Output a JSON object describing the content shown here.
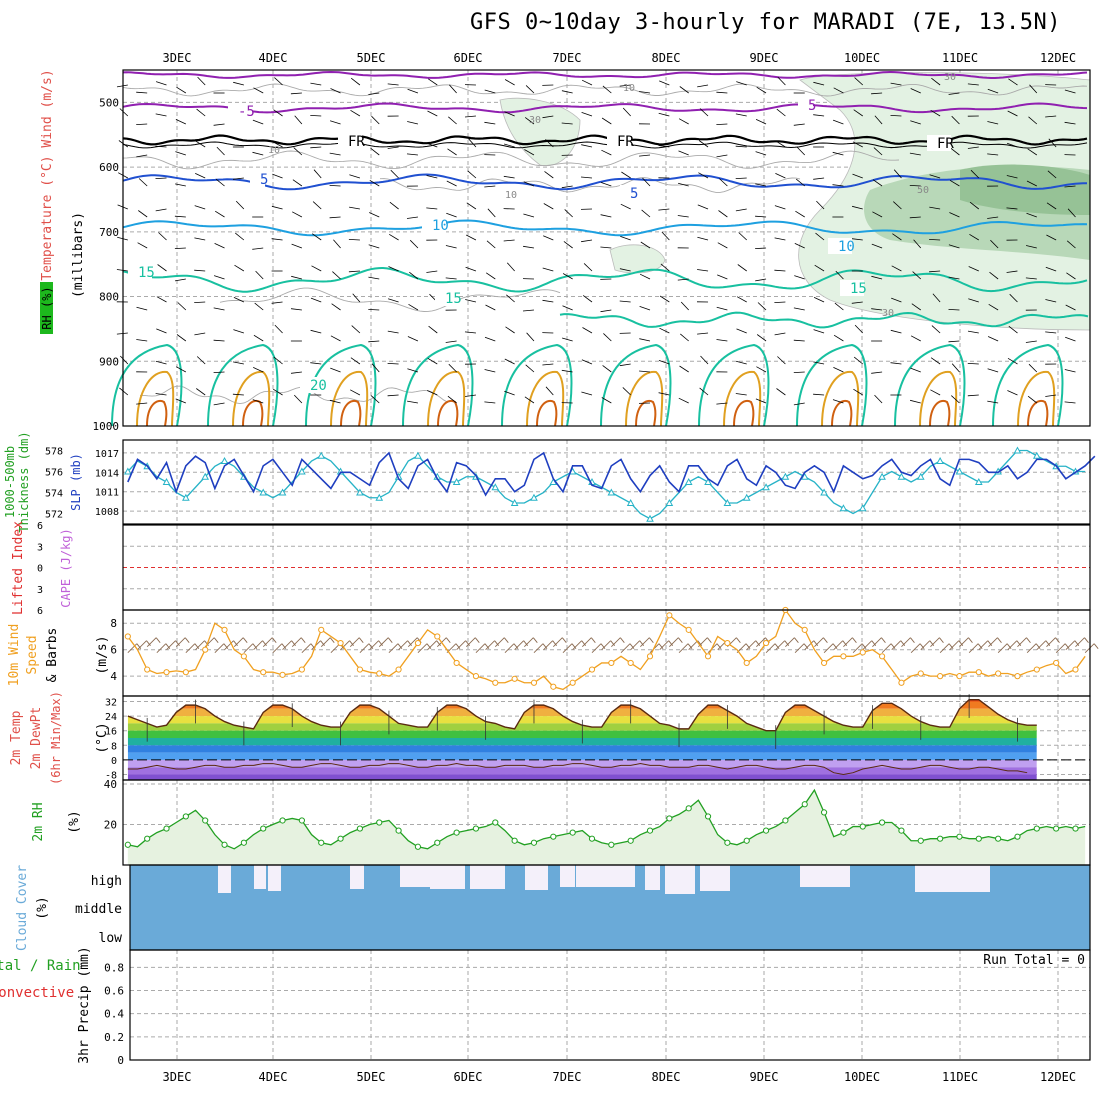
{
  "title": "GFS 0~10day 3-hourly for MARADI (7E, 13.5N)",
  "dates": [
    "3DEC",
    "4DEC",
    "5DEC",
    "6DEC",
    "7DEC",
    "8DEC",
    "9DEC",
    "10DEC",
    "11DEC",
    "12DEC"
  ],
  "colors": {
    "rh_fill": "#1db81d",
    "temp_label": "#e0504a",
    "wind_label": "#000000",
    "slp": "#1f3fc0",
    "thickness": "#27b3c7",
    "li": "#e03030",
    "cape": "#c060d8",
    "wind10": "#f0a020",
    "rh2m": "#22a022",
    "cloud": "#6aaad8",
    "precip_total": "#22a022",
    "precip_conv": "#e03030"
  },
  "labels": {
    "panel1_left": "RH (%)",
    "panel1_mid": "Temperature (°C) Wind (m/s)",
    "panel1_units": "(millibars)",
    "panel2_a": "1000-500mb",
    "panel2_b": "Thickness (dm)",
    "panel2_slp": "SLP (mb)",
    "panel3_li": "Lifted Index",
    "panel3_cape": "CAPE (J/kg)",
    "panel4_a": "10m Wind",
    "panel4_b": "Speed",
    "panel4_c": "& Barbs",
    "panel4_units": "(m/s)",
    "panel5_a": "2m Temp",
    "panel5_b": "2m DewPt",
    "panel5_c": "(6hr Min/Max)",
    "panel5_units": "(°C)",
    "panel6_a": "2m RH",
    "panel6_units": "(%)",
    "panel7_a": "Cloud Cover",
    "panel7_units": "(%)",
    "cloud_levels": [
      "high",
      "middle",
      "low"
    ],
    "panel8_a": "Total / Rain",
    "panel8_b": "Convective",
    "panel8_c": "3hr Precip (mm)",
    "run_total": "Run Total = 0"
  },
  "chart_data": [
    {
      "type": "contour",
      "name": "upper-air",
      "y_ticks": [
        500,
        600,
        700,
        800,
        900,
        1000
      ],
      "ylim": [
        1000,
        450
      ],
      "isotherm_labels": [
        "-5",
        "5",
        "FR",
        "FR",
        "FR",
        "5",
        "5",
        "10",
        "10",
        "15",
        "15",
        "15",
        "20"
      ],
      "rh_labels": [
        "10",
        "10",
        "10",
        "30",
        "30",
        "30",
        "50"
      ]
    },
    {
      "type": "line",
      "name": "thickness-slp",
      "thickness_ticks": [
        572,
        574,
        576,
        578
      ],
      "slp_ticks": [
        1008,
        1011,
        1014,
        1017
      ],
      "slp": [
        1012.5,
        1016,
        1015,
        1013,
        1015.5,
        1011,
        1015,
        1016.5,
        1015.5,
        1011.5,
        1015,
        1016,
        1013.5,
        1011,
        1015,
        1016,
        1014,
        1012,
        1016,
        1014.5,
        1013,
        1011.5,
        1014,
        1014,
        1013,
        1012,
        1015.5,
        1017,
        1013,
        1011.5,
        1015,
        1016,
        1013,
        1011,
        1015.5,
        1015,
        1013.5,
        1010.5,
        1013,
        1013,
        1011,
        1012,
        1016,
        1017,
        1013,
        1011,
        1015,
        1015,
        1012,
        1011.5,
        1015,
        1016,
        1013,
        1011,
        1013.5,
        1015,
        1012.5,
        1011,
        1015,
        1015,
        1013,
        1012,
        1015,
        1016,
        1013,
        1012,
        1015,
        1014,
        1012,
        1011.5,
        1014,
        1015,
        1014,
        1011,
        1015,
        1014,
        1013,
        1013.5,
        1015,
        1016,
        1014,
        1013.5,
        1015,
        1016,
        1013,
        1012,
        1016,
        1016,
        1015.5,
        1014,
        1014,
        1015,
        1013,
        1014,
        1016,
        1016,
        1015,
        1013,
        1014,
        1015,
        1016.5
      ],
      "thickness": [
        576,
        577,
        576.5,
        575.5,
        575,
        574,
        573.5,
        574.5,
        575.5,
        576.5,
        577,
        576.5,
        575.5,
        574.5,
        574,
        573.5,
        574,
        575,
        576,
        577,
        577.5,
        577,
        576,
        575,
        574,
        573.5,
        573.5,
        574,
        575.5,
        577,
        577.5,
        576.5,
        575.5,
        575,
        575,
        575.5,
        575.5,
        575,
        574.5,
        573.5,
        573,
        573,
        573.5,
        574,
        575,
        575.5,
        576,
        575.5,
        575,
        574.5,
        574,
        573.5,
        573,
        572,
        571.5,
        572,
        573,
        574,
        575,
        575.5,
        575,
        574,
        573,
        573,
        573.5,
        574,
        574.5,
        575,
        575.5,
        576,
        575.5,
        575,
        574,
        573,
        572.5,
        572,
        572.5,
        574,
        575.5,
        576,
        575.5,
        575,
        575.5,
        576.5,
        577,
        576.5,
        576,
        575.5,
        575,
        575,
        576,
        577,
        578,
        578,
        577.5,
        577,
        576.5,
        576.5,
        576,
        576
      ],
      "ylim_thickness": [
        571,
        579
      ]
    },
    {
      "type": "line",
      "name": "li-cape",
      "li_ticks": [
        -6,
        -3,
        0,
        3,
        6
      ],
      "li_values": [
        0,
        0
      ],
      "ylim": [
        -6,
        6
      ]
    },
    {
      "type": "line",
      "name": "wind10m",
      "y_ticks": [
        4,
        6,
        8
      ],
      "ylim": [
        2.5,
        9
      ],
      "values": [
        7,
        6,
        4.5,
        4.2,
        4.3,
        4.4,
        4.3,
        4.5,
        6,
        8,
        7.5,
        6,
        5.5,
        4.5,
        4.3,
        4.3,
        4.1,
        4.2,
        4.5,
        5.5,
        7.5,
        7,
        6.5,
        5.5,
        4.5,
        4.3,
        4.2,
        4,
        4.5,
        5.5,
        6.5,
        7.5,
        7,
        6,
        5,
        4.5,
        4,
        3.8,
        3.5,
        3.5,
        3.8,
        3.5,
        3.5,
        4,
        3.2,
        3,
        3.5,
        4,
        4.5,
        5,
        5,
        5.5,
        5,
        4.5,
        5.5,
        7,
        8.6,
        8,
        7.5,
        6.5,
        5.5,
        7,
        6.5,
        6,
        5,
        5.5,
        6.5,
        7,
        9,
        8,
        7.5,
        6,
        5,
        5.5,
        5.5,
        5.5,
        5.8,
        6,
        5.5,
        4.5,
        3.5,
        4,
        4.2,
        4,
        4,
        4.2,
        4,
        4.3,
        4.3,
        4,
        4.2,
        4.2,
        4,
        4.3,
        4.5,
        4.8,
        5,
        4.2,
        4.5,
        5.5
      ]
    },
    {
      "type": "area",
      "name": "temp-dewpt",
      "y_ticks": [
        -8,
        0,
        8,
        16,
        24,
        32
      ],
      "ylim": [
        -11,
        35
      ],
      "temp": [
        24,
        22,
        20,
        18,
        19,
        26,
        30,
        30,
        28,
        24,
        21,
        19,
        18,
        17,
        26,
        30,
        30,
        28,
        24,
        21,
        19,
        18,
        18,
        26,
        30,
        30,
        28,
        24,
        20,
        19,
        18,
        18,
        26,
        30,
        30,
        28,
        24,
        21,
        20,
        18,
        17,
        26,
        30,
        30,
        28,
        24,
        21,
        19,
        18,
        18,
        26,
        30,
        30,
        28,
        24,
        20,
        19,
        17,
        17,
        25,
        30,
        30,
        27,
        24,
        20,
        18,
        16,
        16,
        26,
        30,
        30,
        27,
        24,
        21,
        19,
        18,
        18,
        27,
        31,
        31,
        28,
        24,
        21,
        19,
        18,
        18,
        28,
        33,
        33,
        29,
        25,
        22,
        20,
        19,
        19
      ],
      "dewpt": [
        -5,
        -5,
        -4,
        -3,
        -4,
        -5,
        -5,
        -4,
        -3,
        -3,
        -4,
        -4,
        -3,
        -3,
        -2,
        -2,
        -3,
        -4,
        -4,
        -3,
        -2,
        -2,
        -3,
        -4,
        -4,
        -3,
        -3,
        -2,
        -2,
        -3,
        -4,
        -4,
        -3,
        -3,
        -2,
        -3,
        -3,
        -4,
        -4,
        -3,
        -3,
        -3,
        -4,
        -4,
        -3,
        -3,
        -2,
        -2,
        -3,
        -4,
        -4,
        -3,
        -3,
        -2,
        -3,
        -3,
        -4,
        -4,
        -4,
        -3,
        -3,
        -4,
        -5,
        -4,
        -3,
        -3,
        -4,
        -5,
        -5,
        -4,
        -3,
        -3,
        -4,
        -7,
        -8,
        -7,
        -5,
        -4,
        -3,
        -4,
        -5,
        -5,
        -4,
        -3,
        -3,
        -4,
        -5,
        -5,
        -4,
        -4,
        -5,
        -6,
        -6,
        -7
      ]
    },
    {
      "type": "area",
      "name": "rh2m",
      "y_ticks": [
        20,
        40
      ],
      "ylim": [
        0,
        42
      ],
      "values": [
        10,
        9,
        13,
        16,
        18,
        21,
        24,
        27,
        22,
        15,
        10,
        8,
        11,
        15,
        18,
        20,
        22,
        23,
        22,
        15,
        11,
        10,
        13,
        16,
        18,
        20,
        21,
        22,
        17,
        12,
        9,
        8,
        11,
        14,
        16,
        17,
        18,
        19,
        21,
        17,
        12,
        10,
        11,
        13,
        14,
        15,
        16,
        17,
        13,
        11,
        10,
        11,
        12,
        15,
        17,
        19,
        23,
        25,
        28,
        32,
        24,
        15,
        11,
        10,
        12,
        15,
        17,
        19,
        22,
        26,
        30,
        37,
        26,
        14,
        16,
        19,
        19,
        20,
        21,
        21,
        17,
        12,
        12,
        13,
        13,
        14,
        14,
        13,
        13,
        14,
        13,
        12,
        14,
        17,
        18,
        19,
        18,
        19,
        18,
        19
      ]
    },
    {
      "type": "heatmap",
      "name": "cloud-cover",
      "levels": [
        "high",
        "middle",
        "low"
      ]
    },
    {
      "type": "bar",
      "name": "precip",
      "y_ticks": [
        0,
        0.2,
        0.4,
        0.6,
        0.8
      ],
      "ylim": [
        0,
        0.95
      ],
      "values": []
    }
  ]
}
